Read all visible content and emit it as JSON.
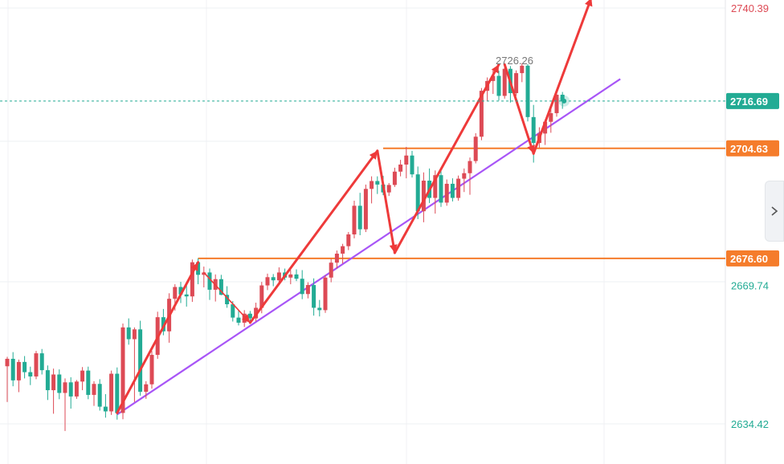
{
  "chart_data": {
    "type": "candlestick",
    "y_ticks": [
      "2740.39",
      "2669.74",
      "2634.42"
    ],
    "ylim": [
      2630.0,
      2744.0
    ],
    "grid": true,
    "colors": {
      "up": "#dd4a55",
      "down": "#22ab94",
      "support": "#f57c2b",
      "trendline": "#a855f7",
      "arrow": "#ee3a3a",
      "last_line": "#22ab94"
    },
    "price_tags": [
      {
        "label": "2716.69",
        "value": 2716.69,
        "color": "#22ab94"
      },
      {
        "label": "2704.63",
        "value": 2704.63,
        "color": "#f57c2b"
      },
      {
        "label": "2676.60",
        "value": 2676.6,
        "color": "#f57c2b"
      }
    ],
    "peak_label": {
      "text": "2726.26",
      "value": 2726.26
    },
    "support_lines": [
      {
        "value": 2676.6,
        "from_index": 33
      },
      {
        "value": 2704.63,
        "from_index": 65
      }
    ],
    "trendline": {
      "from": [
        19,
        2636.8
      ],
      "to": [
        106,
        2722.3
      ]
    },
    "candles": [
      [
        2649.1,
        2651.5,
        2640.0,
        2651.0
      ],
      [
        2651.0,
        2652.7,
        2644.0,
        2645.5
      ],
      [
        2645.5,
        2650.8,
        2642.5,
        2650.2
      ],
      [
        2650.2,
        2651.7,
        2646.0,
        2647.6
      ],
      [
        2647.6,
        2649.0,
        2644.3,
        2646.5
      ],
      [
        2646.5,
        2653.0,
        2645.8,
        2652.4
      ],
      [
        2652.4,
        2653.5,
        2647.0,
        2648.1
      ],
      [
        2648.1,
        2649.3,
        2640.5,
        2643.0
      ],
      [
        2643.0,
        2648.5,
        2637.0,
        2647.0
      ],
      [
        2647.0,
        2648.3,
        2640.7,
        2642.3
      ],
      [
        2642.3,
        2646.0,
        2632.6,
        2645.0
      ],
      [
        2645.0,
        2646.3,
        2638.3,
        2641.4
      ],
      [
        2641.4,
        2645.6,
        2640.8,
        2645.2
      ],
      [
        2645.2,
        2648.9,
        2643.0,
        2648.0
      ],
      [
        2648.0,
        2649.0,
        2640.7,
        2641.8
      ],
      [
        2641.8,
        2645.3,
        2639.0,
        2644.6
      ],
      [
        2644.6,
        2645.8,
        2637.8,
        2638.8
      ],
      [
        2638.8,
        2642.0,
        2636.0,
        2637.6
      ],
      [
        2637.6,
        2648.0,
        2636.7,
        2647.2
      ],
      [
        2647.2,
        2648.8,
        2635.5,
        2637.2
      ],
      [
        2637.2,
        2660.0,
        2635.6,
        2659.0
      ],
      [
        2659.0,
        2661.3,
        2654.6,
        2656.0
      ],
      [
        2656.0,
        2659.0,
        2640.0,
        2658.5
      ],
      [
        2658.5,
        2660.7,
        2641.6,
        2642.6
      ],
      [
        2642.6,
        2645.3,
        2640.8,
        2644.5
      ],
      [
        2644.5,
        2653.0,
        2643.4,
        2652.0
      ],
      [
        2652.0,
        2663.0,
        2651.0,
        2661.6
      ],
      [
        2661.6,
        2663.7,
        2657.0,
        2658.0
      ],
      [
        2658.0,
        2667.7,
        2655.1,
        2666.3
      ],
      [
        2666.3,
        2670.0,
        2663.3,
        2669.3
      ],
      [
        2669.3,
        2670.6,
        2665.2,
        2667.4
      ],
      [
        2667.4,
        2670.0,
        2664.3,
        2666.9
      ],
      [
        2666.9,
        2676.3,
        2665.5,
        2675.6
      ],
      [
        2675.6,
        2676.6,
        2670.0,
        2672.4
      ],
      [
        2672.4,
        2674.5,
        2669.2,
        2673.0
      ],
      [
        2673.0,
        2674.0,
        2666.0,
        2668.6
      ],
      [
        2668.6,
        2672.5,
        2665.6,
        2671.3
      ],
      [
        2671.3,
        2672.4,
        2667.2,
        2667.3
      ],
      [
        2667.3,
        2669.5,
        2664.0,
        2664.9
      ],
      [
        2664.9,
        2665.7,
        2660.5,
        2661.5
      ],
      [
        2661.5,
        2663.5,
        2659.5,
        2660.2
      ],
      [
        2660.2,
        2663.4,
        2659.1,
        2662.5
      ],
      [
        2662.5,
        2663.2,
        2660.0,
        2661.3
      ],
      [
        2661.3,
        2665.3,
        2660.5,
        2664.0
      ],
      [
        2664.0,
        2670.6,
        2662.6,
        2669.7
      ],
      [
        2669.7,
        2672.7,
        2668.5,
        2671.8
      ],
      [
        2671.8,
        2672.6,
        2669.5,
        2671.0
      ],
      [
        2671.0,
        2674.3,
        2670.0,
        2673.0
      ],
      [
        2673.0,
        2674.0,
        2671.0,
        2671.7
      ],
      [
        2671.7,
        2673.6,
        2670.0,
        2672.5
      ],
      [
        2672.5,
        2673.8,
        2670.8,
        2671.4
      ],
      [
        2671.4,
        2673.6,
        2666.2,
        2667.5
      ],
      [
        2667.5,
        2670.5,
        2666.4,
        2669.8
      ],
      [
        2669.8,
        2671.5,
        2662.0,
        2664.0
      ],
      [
        2664.0,
        2666.0,
        2661.8,
        2663.4
      ],
      [
        2663.4,
        2672.3,
        2662.7,
        2671.7
      ],
      [
        2671.7,
        2676.5,
        2670.5,
        2675.5
      ],
      [
        2675.5,
        2678.6,
        2674.0,
        2677.8
      ],
      [
        2677.8,
        2680.3,
        2675.3,
        2679.7
      ],
      [
        2679.7,
        2683.3,
        2678.7,
        2682.7
      ],
      [
        2682.7,
        2691.3,
        2681.7,
        2690.0
      ],
      [
        2690.0,
        2693.3,
        2682.5,
        2684.0
      ],
      [
        2684.0,
        2695.4,
        2683.3,
        2694.3
      ],
      [
        2694.3,
        2697.5,
        2690.6,
        2696.3
      ],
      [
        2696.3,
        2697.5,
        2693.0,
        2695.4
      ],
      [
        2695.4,
        2697.6,
        2692.7,
        2693.4
      ],
      [
        2693.4,
        2695.8,
        2692.5,
        2695.3
      ],
      [
        2695.3,
        2699.7,
        2694.8,
        2698.7
      ],
      [
        2698.7,
        2701.7,
        2697.5,
        2700.5
      ],
      [
        2700.5,
        2705.0,
        2697.0,
        2702.8
      ],
      [
        2702.8,
        2704.0,
        2697.2,
        2698.0
      ],
      [
        2698.0,
        2700.0,
        2686.6,
        2688.6
      ],
      [
        2688.6,
        2698.5,
        2685.8,
        2696.4
      ],
      [
        2696.4,
        2699.5,
        2690.7,
        2692.0
      ],
      [
        2692.0,
        2699.0,
        2688.0,
        2697.8
      ],
      [
        2697.8,
        2698.8,
        2689.7,
        2690.8
      ],
      [
        2690.8,
        2696.7,
        2690.0,
        2695.6
      ],
      [
        2695.6,
        2697.0,
        2691.1,
        2692.0
      ],
      [
        2692.0,
        2697.7,
        2691.3,
        2696.9
      ],
      [
        2696.9,
        2699.5,
        2693.5,
        2698.3
      ],
      [
        2698.3,
        2702.3,
        2692.8,
        2701.4
      ],
      [
        2701.4,
        2708.5,
        2700.8,
        2707.6
      ],
      [
        2707.6,
        2720.0,
        2706.7,
        2719.3
      ],
      [
        2719.3,
        2722.7,
        2716.6,
        2721.8
      ],
      [
        2721.8,
        2724.5,
        2718.5,
        2723.1
      ],
      [
        2723.1,
        2724.4,
        2716.8,
        2718.0
      ],
      [
        2718.0,
        2725.7,
        2717.3,
        2724.9
      ],
      [
        2724.9,
        2725.6,
        2716.3,
        2718.7
      ],
      [
        2718.7,
        2724.5,
        2718.0,
        2723.8
      ],
      [
        2723.8,
        2726.3,
        2721.5,
        2725.7
      ],
      [
        2725.7,
        2726.1,
        2711.5,
        2712.6
      ],
      [
        2712.6,
        2715.7,
        2701.0,
        2706.0
      ],
      [
        2706.0,
        2710.0,
        2704.8,
        2708.4
      ],
      [
        2708.4,
        2712.0,
        2705.5,
        2711.4
      ],
      [
        2711.4,
        2714.7,
        2708.6,
        2713.6
      ],
      [
        2713.6,
        2718.8,
        2712.7,
        2718.3
      ],
      [
        2718.3,
        2719.0,
        2714.7,
        2716.69
      ]
    ],
    "arrows": [
      {
        "from": [
          19,
          2637.2
        ],
        "to": [
          33,
          2675.6
        ],
        "width": 3
      },
      {
        "from": [
          34,
          2673.0
        ],
        "to": [
          42,
          2660.2
        ],
        "width": 1.6
      },
      {
        "from": [
          42,
          2660.2
        ],
        "to": [
          64,
          2704.0
        ],
        "width": 3
      },
      {
        "from": [
          64,
          2704.0
        ],
        "to": [
          67,
          2678.0
        ],
        "width": 3
      },
      {
        "from": [
          67,
          2678.0
        ],
        "to": [
          85,
          2726.0
        ],
        "width": 3
      },
      {
        "from": [
          86,
          2726.0
        ],
        "to": [
          91,
          2703.3
        ],
        "width": 3
      },
      {
        "from": [
          91,
          2703.3
        ],
        "to": [
          101,
          2743.0
        ],
        "width": 3
      }
    ]
  }
}
